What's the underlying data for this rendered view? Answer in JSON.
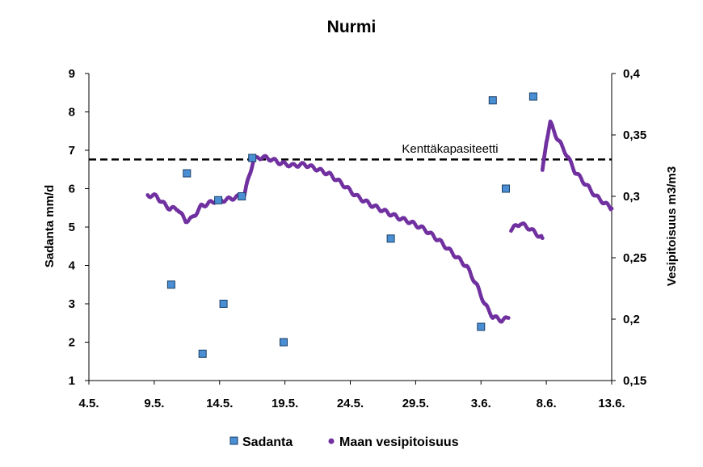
{
  "chart_data": {
    "type": "scatter",
    "title": "Nurmi",
    "ylabel": "Sadanta mm/d",
    "y2label": "Vesipitoisuus m3/m3",
    "x_ticks": [
      "4.5.",
      "9.5.",
      "14.5.",
      "19.5.",
      "24.5.",
      "29.5.",
      "3.6.",
      "8.6.",
      "13.6."
    ],
    "xlim": [
      0,
      40
    ],
    "y_ticks": [
      "1",
      "2",
      "3",
      "4",
      "5",
      "6",
      "7",
      "8",
      "9"
    ],
    "ylim": [
      1,
      9
    ],
    "y2_ticks": [
      "0,15",
      "0,2",
      "0,25",
      "0,3",
      "0,35",
      "0,4"
    ],
    "y2lim": [
      0.15,
      0.4
    ],
    "annotation": {
      "text": "Kenttäkapasiteetti",
      "y2_value": 0.33
    },
    "legend_position": "bottom",
    "series": [
      {
        "name": "Sadanta",
        "axis": "left",
        "marker": "square",
        "color": "#4a8fd4",
        "x": [
          6.3,
          7.5,
          8.7,
          9.9,
          10.3,
          11.7,
          12.5,
          14.9,
          23.1,
          30.0,
          30.9,
          31.9,
          34.0
        ],
        "values": [
          3.5,
          6.4,
          1.7,
          5.7,
          3.0,
          5.8,
          6.8,
          2.0,
          4.7,
          2.4,
          8.3,
          6.0,
          8.4
        ]
      },
      {
        "name": "Maan vesipitoisuus",
        "axis": "right",
        "marker": "dot",
        "color": "#7030a0",
        "segments": [
          {
            "x": [
              4.5,
              5.2,
              5.6,
              6.2,
              6.8,
              7.2,
              7.4,
              7.9,
              8.6,
              9.6,
              10.4,
              11.2,
              11.9,
              12.1,
              12.3,
              12.6
            ],
            "values": [
              0.301,
              0.3,
              0.295,
              0.29,
              0.29,
              0.283,
              0.28,
              0.282,
              0.292,
              0.296,
              0.297,
              0.299,
              0.301,
              0.31,
              0.318,
              0.33
            ]
          },
          {
            "x": [
              12.6,
              13.3,
              14.0,
              14.7,
              15.6,
              16.5,
              17.5,
              18.4,
              19.4,
              20.5,
              21.6,
              22.6,
              23.6,
              24.6,
              25.7,
              26.8,
              27.9,
              28.9,
              29.7,
              30.3,
              30.9,
              31.6,
              32.1
            ],
            "values": [
              0.33,
              0.332,
              0.33,
              0.327,
              0.325,
              0.326,
              0.322,
              0.318,
              0.31,
              0.3,
              0.293,
              0.288,
              0.283,
              0.279,
              0.273,
              0.264,
              0.253,
              0.243,
              0.227,
              0.212,
              0.202,
              0.199,
              0.201
            ]
          },
          {
            "x": [
              32.3,
              33.0,
              33.7,
              34.3,
              34.7
            ],
            "values": [
              0.273,
              0.278,
              0.274,
              0.269,
              0.266
            ]
          },
          {
            "x": [
              34.7,
              35.0,
              35.3,
              35.8,
              36.5,
              37.2,
              38.0,
              38.8,
              39.4,
              40.0
            ],
            "values": [
              0.32,
              0.345,
              0.36,
              0.348,
              0.335,
              0.32,
              0.31,
              0.3,
              0.295,
              0.29
            ]
          }
        ]
      }
    ]
  }
}
